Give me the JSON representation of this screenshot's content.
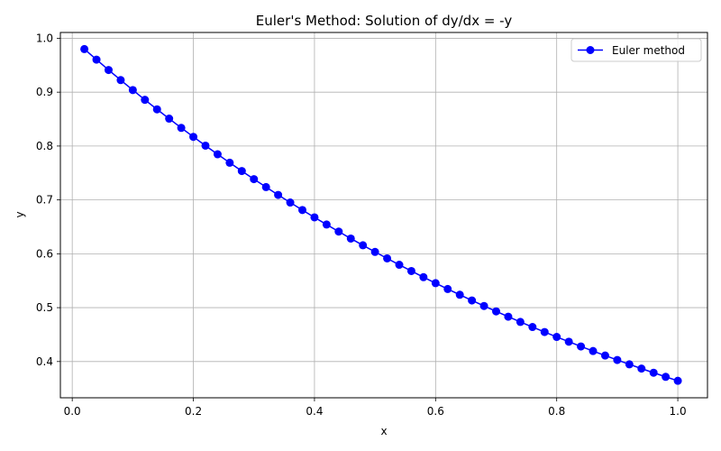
{
  "chart_data": {
    "type": "line",
    "title": "Euler's Method: Solution of dy/dx = -y",
    "xlabel": "x",
    "ylabel": "y",
    "xlim": [
      -0.0196,
      1.049
    ],
    "ylim": [
      0.3327,
      1.0108
    ],
    "xticks": [
      0.0,
      0.2,
      0.4,
      0.6,
      0.8,
      1.0
    ],
    "xtick_labels": [
      "0.0",
      "0.2",
      "0.4",
      "0.6",
      "0.8",
      "1.0"
    ],
    "yticks": [
      0.4,
      0.5,
      0.6,
      0.7,
      0.8,
      0.9,
      1.0
    ],
    "ytick_labels": [
      "0.4",
      "0.5",
      "0.6",
      "0.7",
      "0.8",
      "0.9",
      "1.0"
    ],
    "grid": true,
    "legend_position": "top-right",
    "series": [
      {
        "name": "Euler method",
        "color": "#0000ff",
        "marker": "circle",
        "x": [
          0.02,
          0.04,
          0.06,
          0.08,
          0.1,
          0.12,
          0.14,
          0.16,
          0.18,
          0.2,
          0.22,
          0.24,
          0.26,
          0.28,
          0.3,
          0.32,
          0.34,
          0.36,
          0.38,
          0.4,
          0.42,
          0.44,
          0.46,
          0.48,
          0.5,
          0.52,
          0.54,
          0.56,
          0.58,
          0.6,
          0.62,
          0.64,
          0.66,
          0.68,
          0.7,
          0.72,
          0.74,
          0.76,
          0.78,
          0.8,
          0.82,
          0.84,
          0.86,
          0.88,
          0.9,
          0.92,
          0.94,
          0.96,
          0.98,
          1.0
        ],
        "y": [
          0.98,
          0.9604,
          0.9412,
          0.9224,
          0.9039,
          0.8858,
          0.8681,
          0.8508,
          0.8337,
          0.8171,
          0.8007,
          0.7847,
          0.769,
          0.7536,
          0.7386,
          0.7238,
          0.7093,
          0.6951,
          0.6812,
          0.6676,
          0.6543,
          0.6412,
          0.6283,
          0.6158,
          0.6035,
          0.5914,
          0.5796,
          0.568,
          0.5566,
          0.5455,
          0.5346,
          0.5239,
          0.5134,
          0.5031,
          0.4931,
          0.4832,
          0.4735,
          0.4641,
          0.4548,
          0.4457,
          0.4368,
          0.428,
          0.4195,
          0.4111,
          0.4029,
          0.3948,
          0.3869,
          0.3792,
          0.3716,
          0.3642
        ]
      }
    ]
  }
}
